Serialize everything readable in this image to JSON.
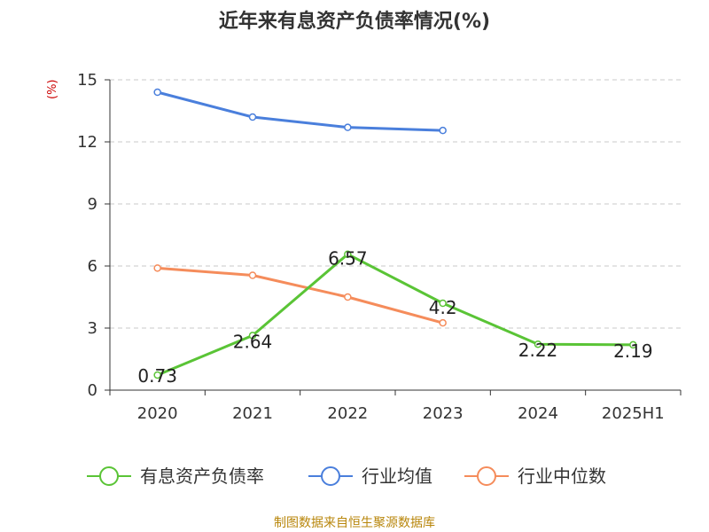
{
  "title": "近年来有息资产负债率情况(%)",
  "unit_label": "(%)",
  "source": "制图数据来自恒生聚源数据库",
  "chart_data": {
    "type": "line",
    "title": "近年来有息资产负债率情况(%)",
    "ylabel": "(%)",
    "xlabel": "",
    "categories": [
      "2020",
      "2021",
      "2022",
      "2023",
      "2024",
      "2025H1"
    ],
    "ylim": [
      0,
      15
    ],
    "yticks": [
      0,
      3,
      6,
      9,
      12,
      15
    ],
    "grid": true,
    "legend_position": "bottom",
    "series": [
      {
        "name": "有息资产负债率",
        "color": "#5ac436",
        "values": [
          0.73,
          2.64,
          6.57,
          4.2,
          2.22,
          2.19
        ],
        "labels": [
          "0.73",
          "2.64",
          "6.57",
          "4.2",
          "2.22",
          "2.19"
        ]
      },
      {
        "name": "行业均值",
        "color": "#4a7fdc",
        "values": [
          14.4,
          13.2,
          12.7,
          12.55,
          null,
          null
        ]
      },
      {
        "name": "行业中位数",
        "color": "#f58c5b",
        "values": [
          5.9,
          5.55,
          4.5,
          3.25,
          null,
          null
        ]
      }
    ]
  }
}
